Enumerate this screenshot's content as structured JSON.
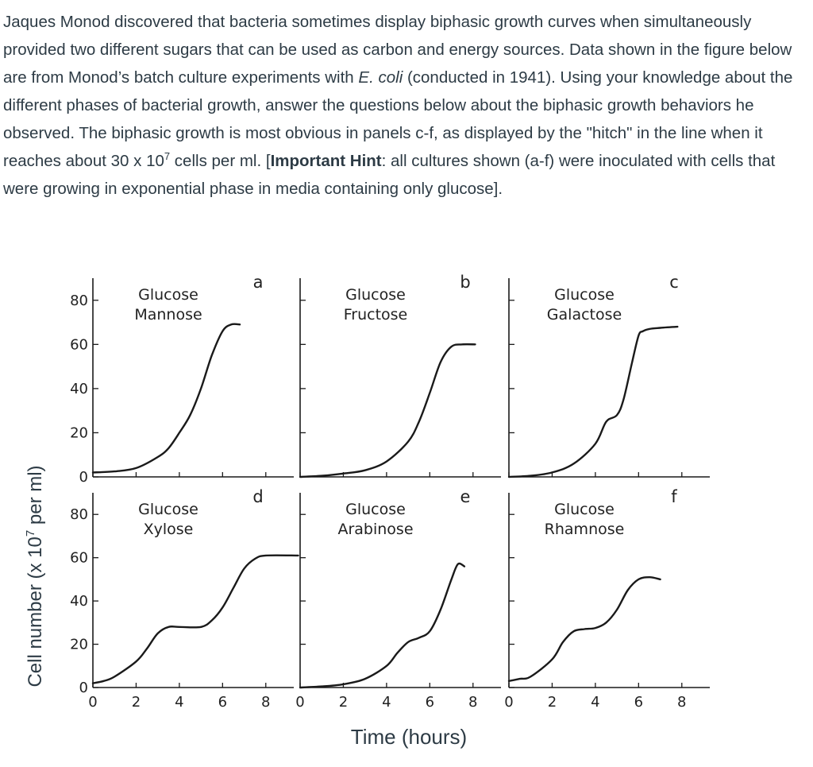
{
  "question": {
    "p1": "Jaques Monod discovered that bacteria sometimes display biphasic growth curves when simultaneously provided two different sugars that can be used as carbon and energy sources. Data shown in the figure below are from Monod’s batch culture experiments with ",
    "organism": "E. coli",
    "p2": " (conducted in 1941). Using your knowledge about the different phases of bacterial growth, answer the questions below about the biphasic growth behaviors he observed. The biphasic growth is most obvious in panels c-f, as displayed by the \"hitch\" in the line when it reaches about 30 x 10",
    "exponent": "7",
    "p3": " cells per ml. [",
    "hint_bold": "Important Hint",
    "p4": ": all cultures shown (a-f) were inoculated with cells that were growing in exponential phase in media containing only glucose]."
  },
  "colors": {
    "text": "#2d3b45",
    "curve": "#1a1a1a"
  },
  "chart_data": {
    "type": "line",
    "ylabel": "Cell number (x 10",
    "ylabel_exp": "7",
    "ylabel_tail": " per ml)",
    "xlabel": "Time (hours)",
    "x_ticks": [
      0,
      2,
      4,
      6,
      8
    ],
    "y_ticks": [
      0,
      20,
      40,
      60,
      80
    ],
    "xlim": [
      0,
      9
    ],
    "ylim": [
      0,
      90
    ],
    "panels": [
      {
        "letter": "a",
        "sugars": [
          "Glucose",
          "Mannose"
        ],
        "x": [
          0,
          1,
          2,
          3,
          3.5,
          4,
          4.5,
          5,
          5.5,
          6,
          6.4,
          6.8
        ],
        "y": [
          2,
          2.5,
          4,
          9,
          13,
          20,
          28,
          40,
          55,
          66,
          69,
          69
        ]
      },
      {
        "letter": "b",
        "sugars": [
          "Glucose",
          "Fructose"
        ],
        "x": [
          0,
          1,
          2,
          3,
          4,
          5,
          5.5,
          6,
          6.5,
          7,
          7.5,
          8.1
        ],
        "y": [
          0,
          0.5,
          1.5,
          3,
          7,
          16,
          25,
          38,
          52,
          59,
          60,
          60
        ]
      },
      {
        "letter": "c",
        "sugars": [
          "Glucose",
          "Galactose"
        ],
        "x": [
          0,
          1,
          2,
          3,
          4,
          4.5,
          5,
          5.3,
          5.7,
          6,
          6.2,
          6.5,
          7,
          7.8
        ],
        "y": [
          0,
          0.5,
          2,
          6,
          15,
          25,
          28,
          35,
          52,
          64,
          66,
          67,
          67.5,
          68
        ]
      },
      {
        "letter": "d",
        "sugars": [
          "Glucose",
          "Xylose"
        ],
        "x": [
          0,
          0.5,
          1,
          2,
          2.5,
          3,
          3.5,
          4,
          5,
          5.5,
          6,
          6.5,
          7,
          7.5,
          8,
          9.5
        ],
        "y": [
          2,
          3,
          5,
          12,
          18,
          25,
          28,
          28,
          28,
          31,
          37,
          46,
          55,
          59.5,
          61,
          61
        ]
      },
      {
        "letter": "e",
        "sugars": [
          "Glucose",
          "Arabinose"
        ],
        "x": [
          0,
          1,
          2,
          3,
          4,
          4.5,
          5,
          5.5,
          6,
          6.5,
          7,
          7.3,
          7.6
        ],
        "y": [
          0,
          0.5,
          1.5,
          4,
          10,
          16,
          21,
          23,
          26,
          36,
          50,
          57,
          56
        ]
      },
      {
        "letter": "f",
        "sugars": [
          "Glucose",
          "Rhamnose"
        ],
        "x": [
          0,
          0.5,
          1,
          2,
          2.5,
          3,
          3.5,
          4,
          4.5,
          5,
          5.5,
          6,
          6.5,
          7
        ],
        "y": [
          3,
          4,
          5,
          13,
          21,
          26,
          27,
          27.5,
          30,
          36,
          45,
          50,
          51,
          50
        ]
      }
    ]
  }
}
